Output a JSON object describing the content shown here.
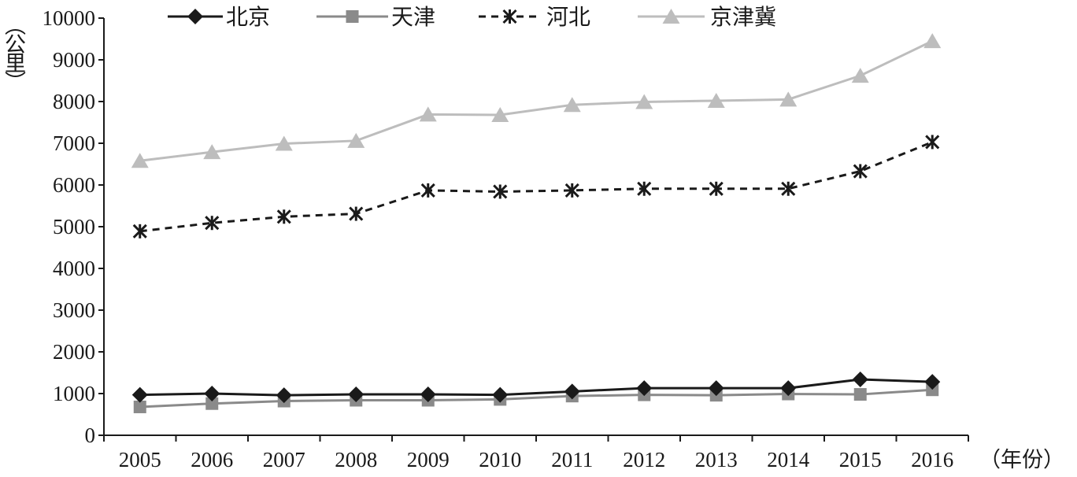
{
  "chart_data": {
    "type": "line",
    "title": "",
    "ylabel": "（公里）",
    "xlabel": "（年份）",
    "ylim": [
      0,
      10000
    ],
    "yticks": [
      0,
      1000,
      2000,
      3000,
      4000,
      5000,
      6000,
      7000,
      8000,
      9000,
      10000
    ],
    "categories": [
      "2005",
      "2006",
      "2007",
      "2008",
      "2009",
      "2010",
      "2011",
      "2012",
      "2013",
      "2014",
      "2015",
      "2016"
    ],
    "legend_position": "top",
    "grid": false,
    "series": [
      {
        "name": "北京",
        "color": "#1a1a1a",
        "marker": "diamond",
        "line_style": "solid",
        "values": [
          970,
          1000,
          960,
          980,
          980,
          970,
          1050,
          1130,
          1130,
          1130,
          1340,
          1280
        ]
      },
      {
        "name": "天津",
        "color": "#8a8a8a",
        "marker": "square",
        "line_style": "solid",
        "values": [
          680,
          760,
          820,
          840,
          840,
          860,
          940,
          970,
          960,
          990,
          980,
          1090
        ]
      },
      {
        "name": "河北",
        "color": "#1a1a1a",
        "marker": "asterisk",
        "line_style": "dashed",
        "values": [
          4890,
          5090,
          5240,
          5310,
          5870,
          5840,
          5870,
          5910,
          5910,
          5910,
          6330,
          7030
        ]
      },
      {
        "name": "京津冀",
        "color": "#bdbdbd",
        "marker": "triangle",
        "line_style": "solid",
        "values": [
          6580,
          6790,
          6990,
          7060,
          7690,
          7680,
          7920,
          7990,
          8020,
          8050,
          8620,
          9450
        ]
      }
    ]
  }
}
